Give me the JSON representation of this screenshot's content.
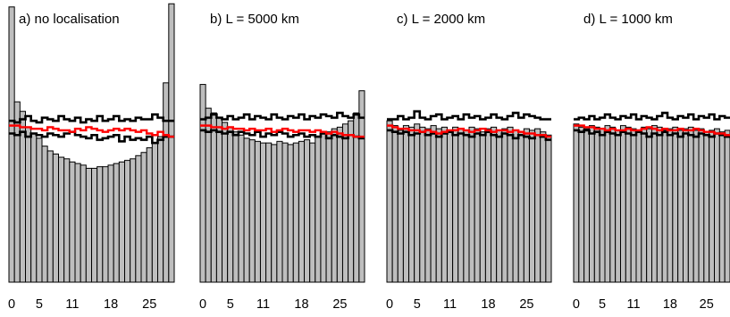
{
  "chart_data": [
    {
      "type": "bar",
      "title": "a) no localisation",
      "xticks": [
        "0",
        "5",
        "11",
        "18",
        "25"
      ],
      "tick_bins": [
        0,
        5,
        11,
        18,
        25
      ],
      "ylim": [
        0,
        1.75
      ],
      "values": [
        1.74,
        1.14,
        1.08,
        0.98,
        0.94,
        0.91,
        0.86,
        0.83,
        0.81,
        0.79,
        0.78,
        0.76,
        0.75,
        0.74,
        0.72,
        0.72,
        0.73,
        0.73,
        0.74,
        0.75,
        0.76,
        0.77,
        0.78,
        0.8,
        0.82,
        0.85,
        0.88,
        0.92,
        1.26,
        1.76
      ],
      "envelope_upper": [
        1.02,
        1.01,
        1.03,
        1.05,
        1.02,
        1.01,
        1.04,
        1.03,
        1.02,
        1.05,
        1.03,
        1.02,
        1.04,
        1.01,
        1.03,
        1.02,
        1.05,
        1.02,
        1.03,
        1.05,
        1.02,
        1.03,
        1.02,
        1.04,
        1.03,
        1.03,
        1.06,
        1.04,
        1.02,
        1.02
      ],
      "envelope_lower": [
        0.94,
        0.93,
        0.95,
        0.92,
        0.94,
        0.93,
        0.92,
        0.94,
        0.93,
        0.92,
        0.94,
        0.95,
        0.93,
        0.92,
        0.91,
        0.93,
        0.9,
        0.91,
        0.92,
        0.93,
        0.89,
        0.92,
        0.9,
        0.91,
        0.9,
        0.92,
        0.88,
        0.9,
        0.92,
        0.92
      ],
      "control": [
        0.99,
        0.99,
        0.98,
        0.98,
        0.97,
        0.97,
        0.96,
        0.98,
        0.97,
        0.96,
        0.96,
        0.95,
        0.97,
        0.96,
        0.98,
        0.97,
        0.96,
        0.95,
        0.96,
        0.97,
        0.96,
        0.97,
        0.96,
        0.95,
        0.96,
        0.94,
        0.93,
        0.95,
        0.93,
        0.92
      ]
    },
    {
      "type": "bar",
      "title": "b) L = 5000 km",
      "xticks": [
        "0",
        "5",
        "11",
        "18",
        "25"
      ],
      "tick_bins": [
        0,
        5,
        11,
        18,
        25
      ],
      "ylim": [
        0,
        1.75
      ],
      "values": [
        1.25,
        1.1,
        1.07,
        1.04,
        1.01,
        0.98,
        0.95,
        0.93,
        0.91,
        0.9,
        0.89,
        0.88,
        0.88,
        0.87,
        0.89,
        0.88,
        0.87,
        0.88,
        0.89,
        0.9,
        0.88,
        0.92,
        0.94,
        0.95,
        0.97,
        0.98,
        1.0,
        1.02,
        1.07,
        1.21
      ],
      "envelope_upper": [
        1.03,
        1.04,
        1.06,
        1.04,
        1.03,
        1.05,
        1.03,
        1.04,
        1.06,
        1.03,
        1.05,
        1.04,
        1.03,
        1.06,
        1.04,
        1.03,
        1.05,
        1.04,
        1.06,
        1.03,
        1.05,
        1.04,
        1.06,
        1.05,
        1.04,
        1.07,
        1.05,
        1.04,
        1.06,
        1.04
      ],
      "envelope_lower": [
        0.96,
        0.95,
        0.96,
        0.95,
        0.94,
        0.95,
        0.93,
        0.95,
        0.94,
        0.93,
        0.95,
        0.92,
        0.94,
        0.93,
        0.95,
        0.94,
        0.92,
        0.93,
        0.94,
        0.92,
        0.93,
        0.92,
        0.94,
        0.91,
        0.93,
        0.92,
        0.91,
        0.93,
        0.92,
        0.91
      ],
      "control": [
        0.99,
        0.99,
        0.98,
        0.98,
        0.97,
        0.98,
        0.97,
        0.97,
        0.96,
        0.97,
        0.96,
        0.96,
        0.97,
        0.95,
        0.96,
        0.97,
        0.96,
        0.95,
        0.96,
        0.96,
        0.95,
        0.96,
        0.95,
        0.94,
        0.95,
        0.94,
        0.93,
        0.93,
        0.92,
        0.92
      ]
    },
    {
      "type": "bar",
      "title": "c) L = 2000 km",
      "xticks": [
        "0",
        "5",
        "11",
        "18",
        "25"
      ],
      "tick_bins": [
        0,
        5,
        11,
        18,
        25
      ],
      "ylim": [
        0,
        1.75
      ],
      "values": [
        1.02,
        0.99,
        0.96,
        0.99,
        0.98,
        1.0,
        0.98,
        0.97,
        0.99,
        0.97,
        0.98,
        0.96,
        0.98,
        0.97,
        0.96,
        0.98,
        0.97,
        0.95,
        0.97,
        0.98,
        0.96,
        0.97,
        0.98,
        0.96,
        0.95,
        0.97,
        0.96,
        0.97,
        0.95,
        0.93
      ],
      "envelope_upper": [
        1.03,
        1.03,
        1.05,
        1.03,
        1.04,
        1.08,
        1.04,
        1.03,
        1.05,
        1.06,
        1.03,
        1.04,
        1.05,
        1.03,
        1.06,
        1.04,
        1.05,
        1.03,
        1.04,
        1.06,
        1.04,
        1.03,
        1.05,
        1.07,
        1.04,
        1.06,
        1.05,
        1.04,
        1.03,
        1.03
      ],
      "envelope_lower": [
        0.96,
        0.95,
        0.94,
        0.95,
        0.93,
        0.94,
        0.95,
        0.93,
        0.94,
        0.92,
        0.94,
        0.95,
        0.93,
        0.94,
        0.93,
        0.92,
        0.94,
        0.93,
        0.95,
        0.93,
        0.92,
        0.94,
        0.93,
        0.91,
        0.93,
        0.92,
        0.91,
        0.93,
        0.92,
        0.9
      ],
      "control": [
        0.99,
        0.98,
        0.97,
        0.97,
        0.96,
        0.96,
        0.95,
        0.96,
        0.95,
        0.94,
        0.95,
        0.96,
        0.96,
        0.97,
        0.96,
        0.95,
        0.96,
        0.97,
        0.96,
        0.95,
        0.96,
        0.96,
        0.95,
        0.96,
        0.95,
        0.94,
        0.94,
        0.93,
        0.93,
        0.92
      ]
    },
    {
      "type": "bar",
      "title": "d) L = 1000 km",
      "xticks": [
        "0",
        "5",
        "11",
        "18",
        "25"
      ],
      "tick_bins": [
        0,
        5,
        11,
        18,
        25
      ],
      "ylim": [
        0,
        1.75
      ],
      "values": [
        1.0,
        0.98,
        0.97,
        0.99,
        0.98,
        0.97,
        0.99,
        0.98,
        0.96,
        0.99,
        0.98,
        0.97,
        0.96,
        0.98,
        0.97,
        0.99,
        0.98,
        0.96,
        0.97,
        0.98,
        0.96,
        0.97,
        0.98,
        0.96,
        0.97,
        0.95,
        0.96,
        0.97,
        0.95,
        0.96
      ],
      "envelope_upper": [
        1.03,
        1.04,
        1.03,
        1.05,
        1.03,
        1.04,
        1.06,
        1.04,
        1.03,
        1.05,
        1.04,
        1.06,
        1.03,
        1.05,
        1.04,
        1.03,
        1.05,
        1.07,
        1.04,
        1.03,
        1.05,
        1.04,
        1.06,
        1.03,
        1.05,
        1.04,
        1.06,
        1.03,
        1.05,
        1.04
      ],
      "envelope_lower": [
        0.96,
        0.95,
        0.96,
        0.94,
        0.95,
        0.93,
        0.95,
        0.94,
        0.93,
        0.95,
        0.94,
        0.93,
        0.95,
        0.94,
        0.92,
        0.94,
        0.93,
        0.95,
        0.93,
        0.94,
        0.92,
        0.94,
        0.93,
        0.92,
        0.94,
        0.93,
        0.92,
        0.94,
        0.93,
        0.92
      ],
      "control": [
        0.99,
        0.99,
        0.98,
        0.98,
        0.97,
        0.97,
        0.96,
        0.97,
        0.96,
        0.96,
        0.97,
        0.96,
        0.96,
        0.97,
        0.98,
        0.97,
        0.96,
        0.97,
        0.96,
        0.96,
        0.97,
        0.96,
        0.96,
        0.97,
        0.96,
        0.95,
        0.95,
        0.94,
        0.94,
        0.93
      ]
    }
  ],
  "colors": {
    "bars": "#bebebe",
    "envelope": "#000000",
    "control_line": "#ff0000"
  }
}
